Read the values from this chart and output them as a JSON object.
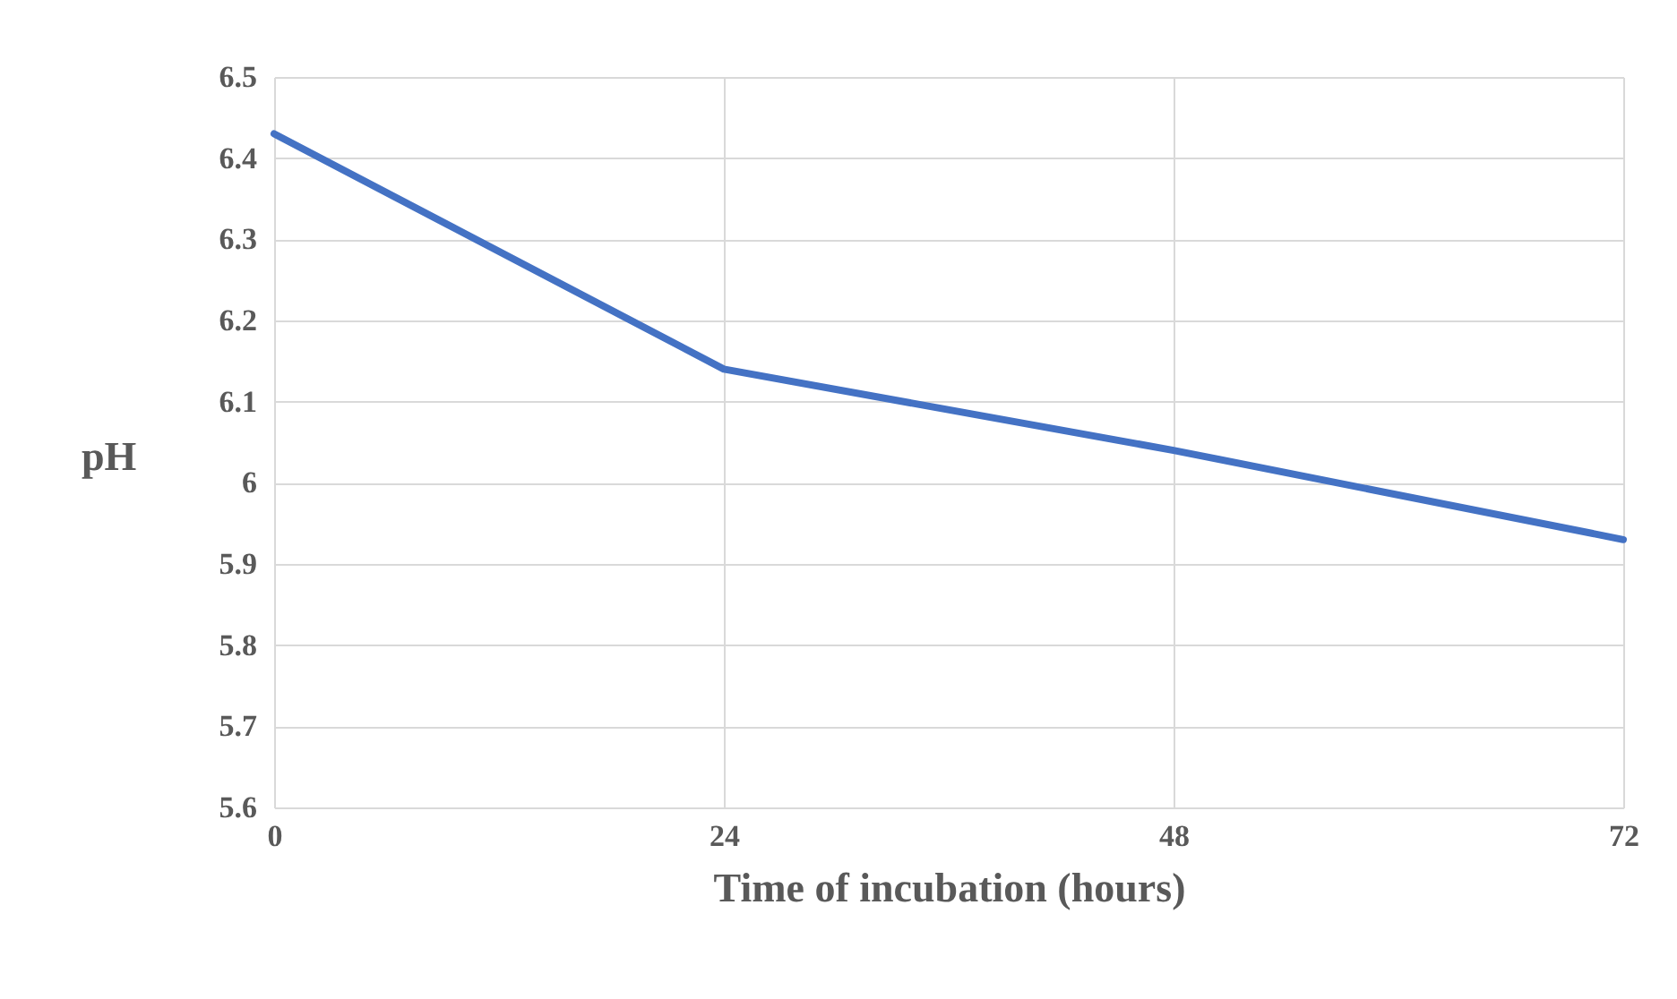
{
  "chart_data": {
    "type": "line",
    "xlabel": "Time of incubation (hours)",
    "ylabel": "pH",
    "x": [
      0,
      24,
      48,
      72
    ],
    "series": [
      {
        "color": "#4472c4",
        "values": [
          6.43,
          6.14,
          6.04,
          5.93
        ]
      }
    ],
    "xlim": [
      0,
      72
    ],
    "xticks": [
      0,
      24,
      48,
      72
    ],
    "ylim": [
      5.6,
      6.5
    ],
    "yticks": [
      5.6,
      5.7,
      5.8,
      5.9,
      6,
      6.1,
      6.2,
      6.3,
      6.4,
      6.5
    ],
    "grid": true,
    "marker": "none",
    "line_style": "solid"
  }
}
